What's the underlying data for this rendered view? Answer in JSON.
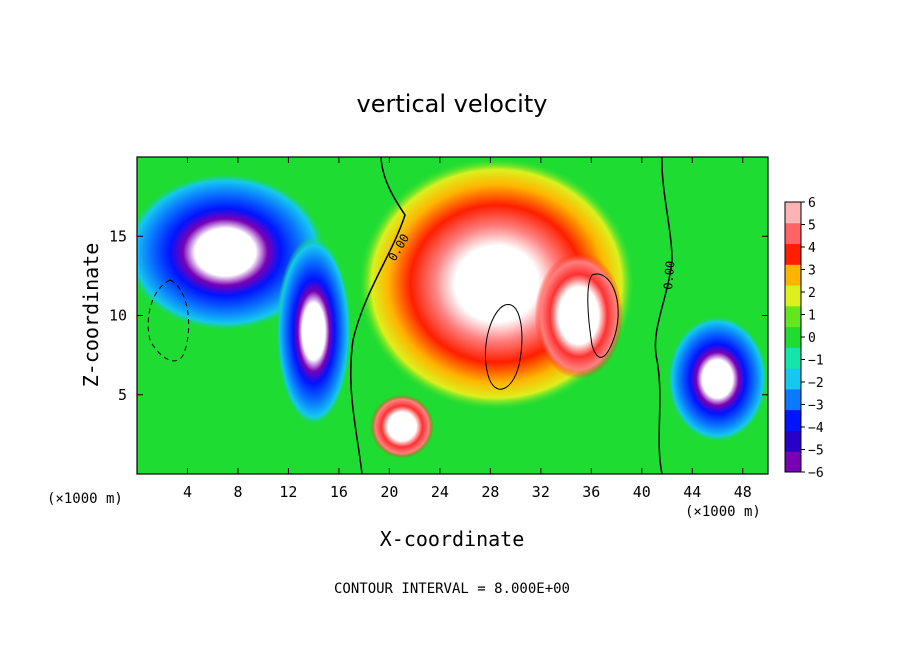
{
  "chart_data": {
    "type": "heatmap",
    "title": "vertical velocity",
    "xlabel": "X-coordinate",
    "ylabel": "Z-coordinate",
    "x_unit_left": "(×1000 m)",
    "x_unit_right": "(×1000 m)",
    "xlim": [
      0,
      50
    ],
    "ylim": [
      0,
      20
    ],
    "x_ticks": [
      4,
      8,
      12,
      16,
      20,
      24,
      28,
      32,
      36,
      40,
      44,
      48
    ],
    "y_ticks": [
      5,
      10,
      15
    ],
    "colorbar": {
      "ticks": [
        6,
        5,
        4,
        3,
        2,
        1,
        0,
        -1,
        -2,
        -3,
        -4,
        -5,
        -6
      ],
      "range": [
        -6,
        6
      ],
      "colors": [
        "#7a00b4",
        "#2a00c8",
        "#0014ff",
        "#0a78ff",
        "#14c8f0",
        "#14e6aa",
        "#1edc32",
        "#64e61e",
        "#dcf01e",
        "#ffb400",
        "#ff1e00",
        "#ff6464",
        "#ffb4b4"
      ]
    },
    "contour_labels": [
      "0.00",
      "0.00"
    ],
    "footer": "CONTOUR INTERVAL = 8.000E+00",
    "features": [
      {
        "kind": "updraft",
        "x": 28.5,
        "z": 12,
        "rx": 11,
        "rz": 8,
        "w": 6
      },
      {
        "kind": "updraft",
        "x": 35,
        "z": 10,
        "rx": 3.5,
        "rz": 4,
        "w": 8
      },
      {
        "kind": "updraft",
        "x": 21,
        "z": 3,
        "rx": 2.5,
        "rz": 2,
        "w": 8
      },
      {
        "kind": "downdraft",
        "x": 7,
        "z": 14,
        "rx": 8,
        "rz": 5,
        "w": -6
      },
      {
        "kind": "downdraft",
        "x": 14,
        "z": 9,
        "rx": 3,
        "rz": 6,
        "w": -5
      },
      {
        "kind": "downdraft",
        "x": 46,
        "z": 6,
        "rx": 4,
        "rz": 4,
        "w": -6
      }
    ]
  }
}
